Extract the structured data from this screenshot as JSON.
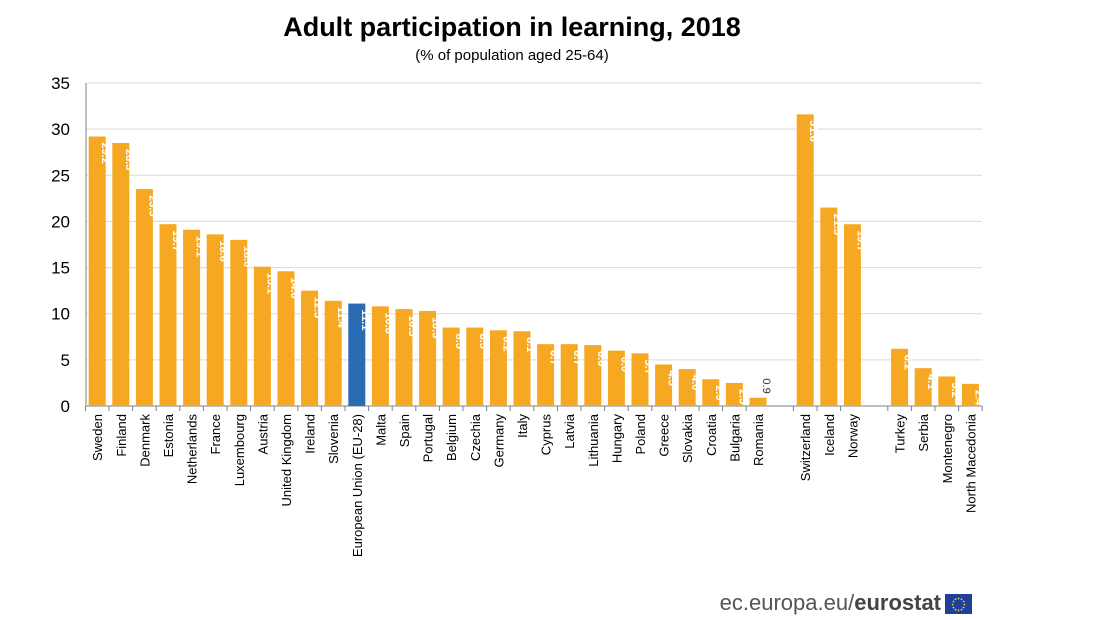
{
  "chart_data": {
    "type": "bar",
    "title": "Adult participation in learning, 2018",
    "subtitle": "(% of population aged 25-64)",
    "xlabel": "",
    "ylabel": "",
    "ylim": [
      0,
      35
    ],
    "yticks": [
      "0",
      "5",
      "10",
      "15",
      "20",
      "25",
      "30",
      "35"
    ],
    "grid": true,
    "legend": "none",
    "colors": {
      "default": "#F7A823",
      "highlight": "#2A6CB4"
    },
    "groups": [
      {
        "categories": [
          "Sweden",
          "Finland",
          "Denmark",
          "Estonia",
          "Netherlands",
          "France",
          "Luxembourg",
          "Austria",
          "United Kingdom",
          "Ireland",
          "Slovenia",
          "European Union (EU-28)",
          "Malta",
          "Spain",
          "Portugal",
          "Belgium",
          "Czechia",
          "Germany",
          "Italy",
          "Cyprus",
          "Latvia",
          "Lithuania",
          "Hungary",
          "Poland",
          "Greece",
          "Slovakia",
          "Croatia",
          "Bulgaria",
          "Romania"
        ],
        "values": [
          29.2,
          28.5,
          23.5,
          19.7,
          19.1,
          18.6,
          18.0,
          15.1,
          14.6,
          12.5,
          11.4,
          11.1,
          10.8,
          10.5,
          10.3,
          8.5,
          8.5,
          8.2,
          8.1,
          6.7,
          6.7,
          6.6,
          6.0,
          5.7,
          4.5,
          4.0,
          2.9,
          2.5,
          0.9
        ],
        "labels": [
          "29.2",
          "28.5",
          "23.5",
          "19.7",
          "19.1",
          "18.6",
          "18.0",
          "15.1",
          "14.6",
          "12.5",
          "11.4",
          "11.1",
          "10.8",
          "10.5",
          "10.3",
          "8.5",
          "8.5",
          "8.2",
          "8.1",
          "6.7",
          "6.7",
          "6.6",
          "6.0",
          "5.7",
          "4.5",
          "4.0",
          "2.9",
          "2.5",
          "0.9"
        ],
        "highlight": "European Union (EU-28)"
      },
      {
        "categories": [
          "Switzerland",
          "Iceland",
          "Norway"
        ],
        "values": [
          31.6,
          21.5,
          19.7
        ],
        "labels": [
          "31.6",
          "21.5",
          "19.7"
        ]
      },
      {
        "categories": [
          "Turkey",
          "Serbia",
          "Montenegro",
          "North Macedonia"
        ],
        "values": [
          6.2,
          4.1,
          3.2,
          2.4
        ],
        "labels": [
          "6.2",
          "4.1",
          "3.2",
          "2.4"
        ]
      }
    ]
  },
  "footer": {
    "site": "ec.europa.eu/",
    "brand": "eurostat"
  }
}
